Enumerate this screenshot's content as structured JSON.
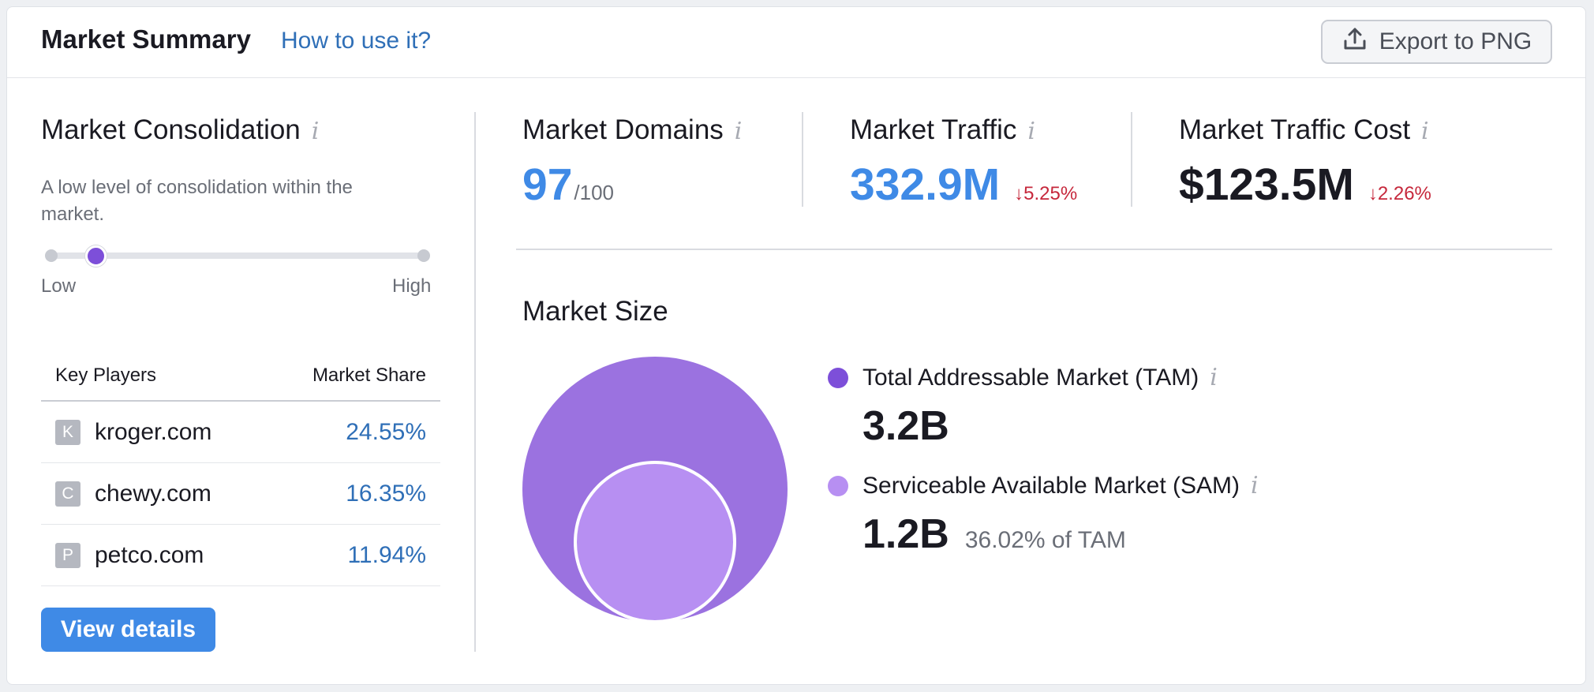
{
  "header": {
    "title": "Market Summary",
    "help_link": "How to use it?",
    "export_label": "Export to PNG"
  },
  "consolidation": {
    "title": "Market Consolidation",
    "info_glyph": "i",
    "description": "A low level of consolidation within the market.",
    "level": 0.12,
    "low_label": "Low",
    "high_label": "High"
  },
  "key_players": {
    "col_player": "Key Players",
    "col_share": "Market Share",
    "rows": [
      {
        "initial": "K",
        "domain": "kroger.com",
        "share": "24.55%"
      },
      {
        "initial": "C",
        "domain": "chewy.com",
        "share": "16.35%"
      },
      {
        "initial": "P",
        "domain": "petco.com",
        "share": "11.94%"
      }
    ],
    "view_details": "View details"
  },
  "metrics": {
    "domains": {
      "title": "Market Domains",
      "value": "97",
      "suffix": "/100"
    },
    "traffic": {
      "title": "Market Traffic",
      "value": "332.9M",
      "change": "↓5.25%"
    },
    "cost": {
      "title": "Market Traffic Cost",
      "value": "$123.5M",
      "change": "↓2.26%"
    }
  },
  "market_size": {
    "title": "Market Size",
    "tam": {
      "label": "Total Addressable Market (TAM)",
      "value": "3.2B",
      "color": "#9b72e0"
    },
    "sam": {
      "label": "Serviceable Available Market (SAM)",
      "value": "1.2B",
      "share": "36.02% of TAM",
      "color": "#b78ff2"
    }
  },
  "colors": {
    "accent_blue": "#3f8ae6",
    "link_blue": "#2f6fb7",
    "purple": "#7d4fd9",
    "negative": "#c6283c"
  },
  "icons": {
    "export": "upload-icon",
    "info": "info-icon"
  }
}
